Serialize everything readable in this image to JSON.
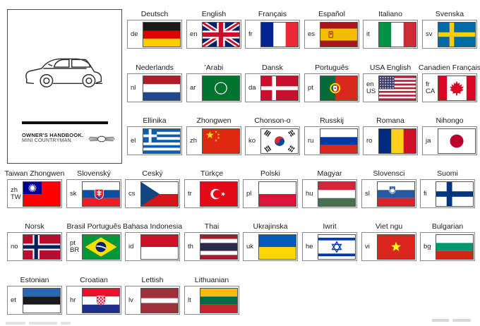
{
  "cover": {
    "title_line1": "OWNER'S HANDBOOK.",
    "title_line2": "MINI COUNTRYMAN.",
    "car_icon": "car-outline-icon",
    "logo_icon": "mini-wings-logo-icon"
  },
  "ui_colors": {
    "box_border": "#8a8a8a",
    "flag_border": "#555555",
    "label_text": "#1c1c1c",
    "cover_border": "#4a4a4a"
  },
  "language_rows": [
    {
      "items": [
        {
          "label": "Deutsch",
          "code": "de",
          "flag": "germany"
        },
        {
          "label": "English",
          "code": "en",
          "flag": "uk"
        },
        {
          "label": "Français",
          "code": "fr",
          "flag": "france"
        },
        {
          "label": "Español",
          "code": "es",
          "flag": "spain"
        },
        {
          "label": "Italiano",
          "code": "it",
          "flag": "italy"
        },
        {
          "label": "Svenska",
          "code": "sv",
          "flag": "sweden"
        }
      ]
    },
    {
      "items": [
        {
          "label": "Nederlands",
          "code": "nl",
          "flag": "netherlands"
        },
        {
          "label": "'Arabi",
          "code": "ar",
          "flag": "arab-league"
        },
        {
          "label": "Dansk",
          "code": "da",
          "flag": "denmark"
        },
        {
          "label": "Português",
          "code": "pt",
          "flag": "portugal"
        },
        {
          "label": "USA English",
          "code": "en\nUS",
          "flag": "usa"
        },
        {
          "label": "Canadien Français",
          "code": "fr\nCA",
          "flag": "canada"
        }
      ]
    },
    {
      "items": [
        {
          "label": "Ellinika",
          "code": "el",
          "flag": "greece"
        },
        {
          "label": "Zhongwen",
          "code": "zh",
          "flag": "china"
        },
        {
          "label": "Chonson-o",
          "code": "ko",
          "flag": "south-korea"
        },
        {
          "label": "Russkij",
          "code": "ru",
          "flag": "russia"
        },
        {
          "label": "Romana",
          "code": "ro",
          "flag": "romania"
        },
        {
          "label": "Nihongo",
          "code": "ja",
          "flag": "japan"
        }
      ]
    },
    {
      "items": [
        {
          "label": "Taiwan Zhongwen",
          "code": "zh\nTW",
          "flag": "taiwan"
        },
        {
          "label": "Slovenský",
          "code": "sk",
          "flag": "slovakia"
        },
        {
          "label": "Ceský",
          "code": "cs",
          "flag": "czech"
        },
        {
          "label": "Türkçe",
          "code": "tr",
          "flag": "turkey"
        },
        {
          "label": "Polski",
          "code": "pl",
          "flag": "poland"
        },
        {
          "label": "Magyar",
          "code": "hu",
          "flag": "hungary"
        },
        {
          "label": "Slovensci",
          "code": "sl",
          "flag": "slovenia"
        },
        {
          "label": "Suomi",
          "code": "fi",
          "flag": "finland"
        }
      ]
    },
    {
      "items": [
        {
          "label": "Norsk",
          "code": "no",
          "flag": "norway"
        },
        {
          "label": "Brasil Português",
          "code": "pt\nBR",
          "flag": "brazil"
        },
        {
          "label": "Bahasa Indonesia",
          "code": "id",
          "flag": "indonesia"
        },
        {
          "label": "Thai",
          "code": "th",
          "flag": "thailand"
        },
        {
          "label": "Ukrajinska",
          "code": "uk",
          "flag": "ukraine"
        },
        {
          "label": "Iwrit",
          "code": "he",
          "flag": "israel"
        },
        {
          "label": "Viet ngu",
          "code": "vi",
          "flag": "vietnam"
        },
        {
          "label": "Bulgarian",
          "code": "bg",
          "flag": "bulgaria"
        }
      ]
    },
    {
      "items": [
        {
          "label": "Estonian",
          "code": "et",
          "flag": "estonia"
        },
        {
          "label": "Croatian",
          "code": "hr",
          "flag": "croatia"
        },
        {
          "label": "Lettish",
          "code": "lv",
          "flag": "latvia"
        },
        {
          "label": "Lithuanian",
          "code": "lt",
          "flag": "lithuania"
        }
      ]
    }
  ]
}
